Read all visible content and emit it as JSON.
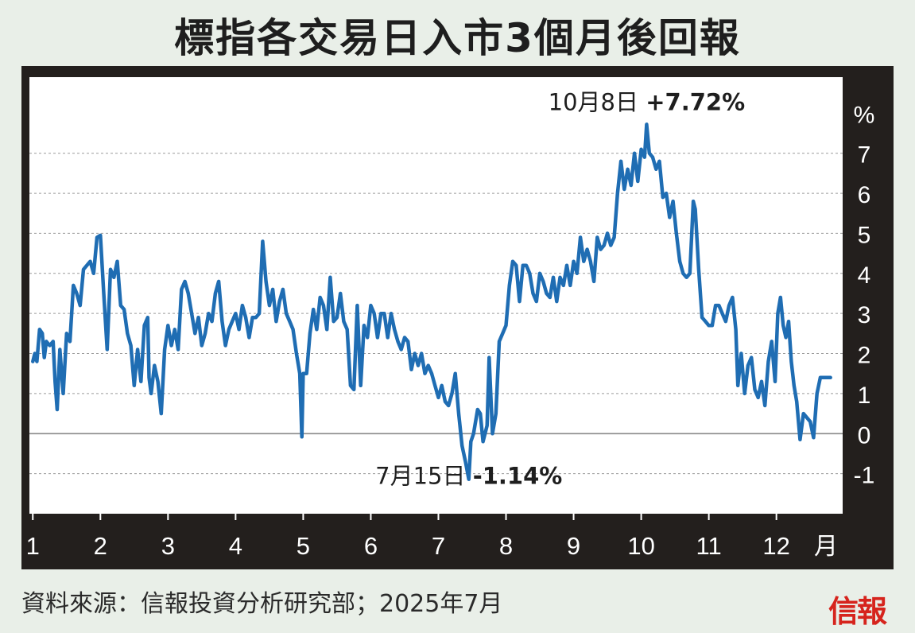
{
  "title": "標指各交易日入市3個月後回報",
  "source": "資料來源：信報投資分析研究部；2025年7月",
  "logo_text": "信報",
  "colors": {
    "line": "#1f6db3",
    "frame": "#231f1d",
    "plot_bg": "#ffffff",
    "page_bg": "#e9efe8",
    "logo": "#d6241d"
  },
  "chart_data": {
    "type": "line",
    "title": "標指各交易日入市3個月後回報",
    "xlabel": "月",
    "ylabel": "%",
    "x_ticks": [
      "1",
      "2",
      "3",
      "4",
      "5",
      "6",
      "7",
      "8",
      "9",
      "10",
      "11",
      "12"
    ],
    "x_unit_label": "月",
    "y_ticks": [
      -1,
      0,
      1,
      2,
      3,
      4,
      5,
      6,
      7
    ],
    "y_unit_label": "%",
    "ylim": [
      -2,
      8.9
    ],
    "xlim": [
      0.95,
      12.98
    ],
    "grid": "horizontal dashed",
    "annotations": [
      {
        "date": "10月8日",
        "value_label": "+7.72%",
        "x": 10.08,
        "y": 7.72
      },
      {
        "date": "7月15日",
        "value_label": "-1.14%",
        "x": 7.45,
        "y": -1.14
      }
    ],
    "series": [
      {
        "values": [
          [
            1.0,
            1.8
          ],
          [
            1.03,
            2.0
          ],
          [
            1.06,
            1.8
          ],
          [
            1.1,
            2.6
          ],
          [
            1.14,
            2.5
          ],
          [
            1.17,
            1.9
          ],
          [
            1.2,
            2.3
          ],
          [
            1.25,
            2.2
          ],
          [
            1.3,
            2.3
          ],
          [
            1.33,
            1.3
          ],
          [
            1.36,
            0.6
          ],
          [
            1.4,
            2.1
          ],
          [
            1.45,
            1.0
          ],
          [
            1.5,
            2.5
          ],
          [
            1.55,
            2.3
          ],
          [
            1.6,
            3.7
          ],
          [
            1.65,
            3.5
          ],
          [
            1.7,
            3.2
          ],
          [
            1.75,
            4.1
          ],
          [
            1.8,
            4.2
          ],
          [
            1.85,
            4.3
          ],
          [
            1.9,
            4.0
          ],
          [
            1.95,
            4.9
          ],
          [
            2.0,
            4.95
          ],
          [
            2.05,
            3.5
          ],
          [
            2.1,
            2.1
          ],
          [
            2.15,
            4.1
          ],
          [
            2.2,
            3.9
          ],
          [
            2.25,
            4.3
          ],
          [
            2.3,
            3.2
          ],
          [
            2.35,
            3.1
          ],
          [
            2.4,
            2.5
          ],
          [
            2.45,
            2.2
          ],
          [
            2.5,
            1.2
          ],
          [
            2.55,
            2.1
          ],
          [
            2.6,
            1.3
          ],
          [
            2.65,
            2.7
          ],
          [
            2.7,
            2.9
          ],
          [
            2.72,
            1.4
          ],
          [
            2.75,
            1.0
          ],
          [
            2.8,
            1.7
          ],
          [
            2.85,
            1.3
          ],
          [
            2.9,
            0.5
          ],
          [
            2.95,
            2.1
          ],
          [
            3.0,
            2.7
          ],
          [
            3.05,
            2.2
          ],
          [
            3.1,
            2.6
          ],
          [
            3.15,
            2.1
          ],
          [
            3.2,
            3.6
          ],
          [
            3.25,
            3.8
          ],
          [
            3.3,
            3.5
          ],
          [
            3.35,
            3.0
          ],
          [
            3.4,
            2.5
          ],
          [
            3.45,
            2.9
          ],
          [
            3.5,
            2.2
          ],
          [
            3.55,
            2.5
          ],
          [
            3.6,
            3.0
          ],
          [
            3.65,
            2.8
          ],
          [
            3.7,
            3.5
          ],
          [
            3.75,
            3.8
          ],
          [
            3.8,
            2.8
          ],
          [
            3.85,
            2.2
          ],
          [
            3.9,
            2.6
          ],
          [
            3.95,
            2.8
          ],
          [
            4.0,
            3.0
          ],
          [
            4.05,
            2.6
          ],
          [
            4.1,
            3.2
          ],
          [
            4.15,
            2.9
          ],
          [
            4.2,
            2.4
          ],
          [
            4.25,
            2.9
          ],
          [
            4.3,
            2.9
          ],
          [
            4.35,
            3.0
          ],
          [
            4.4,
            4.8
          ],
          [
            4.45,
            3.8
          ],
          [
            4.5,
            3.2
          ],
          [
            4.55,
            3.6
          ],
          [
            4.6,
            2.8
          ],
          [
            4.65,
            3.3
          ],
          [
            4.7,
            3.6
          ],
          [
            4.75,
            3.0
          ],
          [
            4.8,
            2.8
          ],
          [
            4.85,
            2.6
          ],
          [
            4.9,
            2.0
          ],
          [
            4.95,
            1.5
          ],
          [
            4.98,
            -0.08
          ],
          [
            5.0,
            1.5
          ],
          [
            5.05,
            1.5
          ],
          [
            5.1,
            2.5
          ],
          [
            5.15,
            3.1
          ],
          [
            5.2,
            2.6
          ],
          [
            5.25,
            3.4
          ],
          [
            5.3,
            3.2
          ],
          [
            5.35,
            2.6
          ],
          [
            5.4,
            3.9
          ],
          [
            5.45,
            2.8
          ],
          [
            5.5,
            2.9
          ],
          [
            5.55,
            3.5
          ],
          [
            5.6,
            2.8
          ],
          [
            5.65,
            2.6
          ],
          [
            5.7,
            1.2
          ],
          [
            5.75,
            1.1
          ],
          [
            5.8,
            3.2
          ],
          [
            5.85,
            1.2
          ],
          [
            5.9,
            2.7
          ],
          [
            5.95,
            2.4
          ],
          [
            6.0,
            3.2
          ],
          [
            6.05,
            3.0
          ],
          [
            6.1,
            2.4
          ],
          [
            6.15,
            3.0
          ],
          [
            6.2,
            3.0
          ],
          [
            6.25,
            2.4
          ],
          [
            6.3,
            3.0
          ],
          [
            6.35,
            2.6
          ],
          [
            6.4,
            2.3
          ],
          [
            6.45,
            2.1
          ],
          [
            6.5,
            2.4
          ],
          [
            6.55,
            2.3
          ],
          [
            6.6,
            1.6
          ],
          [
            6.65,
            2.0
          ],
          [
            6.7,
            1.7
          ],
          [
            6.75,
            2.0
          ],
          [
            6.8,
            1.5
          ],
          [
            6.85,
            1.7
          ],
          [
            6.9,
            1.5
          ],
          [
            6.95,
            1.2
          ],
          [
            7.0,
            0.9
          ],
          [
            7.05,
            1.2
          ],
          [
            7.1,
            0.8
          ],
          [
            7.15,
            0.7
          ],
          [
            7.2,
            1.0
          ],
          [
            7.25,
            1.5
          ],
          [
            7.3,
            0.5
          ],
          [
            7.35,
            -0.3
          ],
          [
            7.4,
            -0.7
          ],
          [
            7.45,
            -1.14
          ],
          [
            7.48,
            -0.2
          ],
          [
            7.52,
            0.0
          ],
          [
            7.58,
            0.6
          ],
          [
            7.62,
            0.5
          ],
          [
            7.66,
            -0.2
          ],
          [
            7.72,
            0.2
          ],
          [
            7.75,
            1.9
          ],
          [
            7.8,
            0.0
          ],
          [
            7.85,
            0.5
          ],
          [
            7.9,
            2.3
          ],
          [
            7.95,
            2.5
          ],
          [
            8.0,
            2.7
          ],
          [
            8.05,
            3.7
          ],
          [
            8.1,
            4.3
          ],
          [
            8.15,
            4.2
          ],
          [
            8.2,
            3.3
          ],
          [
            8.25,
            4.2
          ],
          [
            8.3,
            4.2
          ],
          [
            8.35,
            4.0
          ],
          [
            8.4,
            3.5
          ],
          [
            8.45,
            3.3
          ],
          [
            8.5,
            4.0
          ],
          [
            8.55,
            3.8
          ],
          [
            8.6,
            3.5
          ],
          [
            8.65,
            3.4
          ],
          [
            8.7,
            3.9
          ],
          [
            8.75,
            3.3
          ],
          [
            8.8,
            3.9
          ],
          [
            8.85,
            3.7
          ],
          [
            8.9,
            4.2
          ],
          [
            8.95,
            3.7
          ],
          [
            9.0,
            4.3
          ],
          [
            9.05,
            4.0
          ],
          [
            9.1,
            4.9
          ],
          [
            9.15,
            4.3
          ],
          [
            9.2,
            4.6
          ],
          [
            9.25,
            4.3
          ],
          [
            9.3,
            3.8
          ],
          [
            9.35,
            4.9
          ],
          [
            9.4,
            4.6
          ],
          [
            9.45,
            4.7
          ],
          [
            9.5,
            5.0
          ],
          [
            9.55,
            4.7
          ],
          [
            9.6,
            4.9
          ],
          [
            9.65,
            6.0
          ],
          [
            9.7,
            6.8
          ],
          [
            9.75,
            6.1
          ],
          [
            9.8,
            6.6
          ],
          [
            9.85,
            6.2
          ],
          [
            9.9,
            7.0
          ],
          [
            9.95,
            6.3
          ],
          [
            10.0,
            7.1
          ],
          [
            10.05,
            6.9
          ],
          [
            10.08,
            7.72
          ],
          [
            10.12,
            7.0
          ],
          [
            10.17,
            6.9
          ],
          [
            10.22,
            6.6
          ],
          [
            10.27,
            6.8
          ],
          [
            10.32,
            5.9
          ],
          [
            10.37,
            6.0
          ],
          [
            10.42,
            5.4
          ],
          [
            10.47,
            5.8
          ],
          [
            10.52,
            5.0
          ],
          [
            10.57,
            4.3
          ],
          [
            10.62,
            4.0
          ],
          [
            10.67,
            3.9
          ],
          [
            10.72,
            4.0
          ],
          [
            10.77,
            5.8
          ],
          [
            10.8,
            5.6
          ],
          [
            10.85,
            4.1
          ],
          [
            10.9,
            2.9
          ],
          [
            10.95,
            2.8
          ],
          [
            11.0,
            2.7
          ],
          [
            11.05,
            2.7
          ],
          [
            11.1,
            3.2
          ],
          [
            11.15,
            3.2
          ],
          [
            11.2,
            3.0
          ],
          [
            11.25,
            2.8
          ],
          [
            11.3,
            3.2
          ],
          [
            11.35,
            3.4
          ],
          [
            11.4,
            2.6
          ],
          [
            11.43,
            1.2
          ],
          [
            11.48,
            2.0
          ],
          [
            11.53,
            1.0
          ],
          [
            11.58,
            1.7
          ],
          [
            11.63,
            1.9
          ],
          [
            11.68,
            1.1
          ],
          [
            11.73,
            0.9
          ],
          [
            11.78,
            1.3
          ],
          [
            11.83,
            0.7
          ],
          [
            11.88,
            1.8
          ],
          [
            11.93,
            2.3
          ],
          [
            11.98,
            1.3
          ],
          [
            12.02,
            3.0
          ],
          [
            12.06,
            3.4
          ],
          [
            12.1,
            2.7
          ],
          [
            12.14,
            2.4
          ],
          [
            12.18,
            2.8
          ],
          [
            12.22,
            1.8
          ],
          [
            12.26,
            1.2
          ],
          [
            12.3,
            0.8
          ],
          [
            12.35,
            -0.15
          ],
          [
            12.4,
            0.5
          ],
          [
            12.45,
            0.4
          ],
          [
            12.5,
            0.3
          ],
          [
            12.55,
            -0.1
          ],
          [
            12.6,
            1.0
          ],
          [
            12.65,
            1.4
          ],
          [
            12.7,
            1.4
          ],
          [
            12.75,
            1.4
          ],
          [
            12.8,
            1.4
          ]
        ]
      }
    ]
  }
}
